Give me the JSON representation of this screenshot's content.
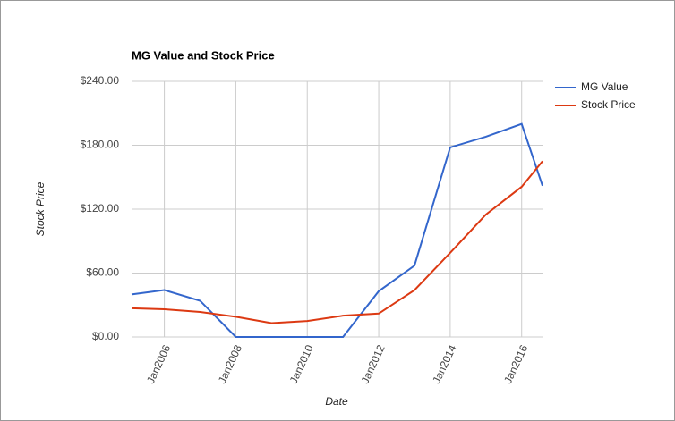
{
  "chart_data": {
    "type": "line",
    "title": "MG Value and Stock Price",
    "x_label": "Date",
    "y_label": "Stock Price",
    "x": [
      "2005-02",
      "2006-01",
      "2007-01",
      "2008-01",
      "2009-01",
      "2010-01",
      "2011-01",
      "2012-01",
      "2013-01",
      "2014-01",
      "2015-01",
      "2016-01",
      "2016-08"
    ],
    "series": [
      {
        "name": "MG Value",
        "color": "#3366cc",
        "values": [
          40,
          44,
          34,
          0,
          0,
          0,
          0,
          43,
          67,
          178,
          188,
          200,
          142
        ]
      },
      {
        "name": "Stock Price",
        "color": "#dc3912",
        "values": [
          27,
          26,
          23.5,
          19,
          13,
          15,
          20,
          22,
          44,
          79,
          115,
          141,
          165
        ]
      }
    ],
    "xlim": [
      "2005-02",
      "2016-08"
    ],
    "xticks": [
      {
        "value": "2006-01",
        "label": "Jan2006"
      },
      {
        "value": "2008-01",
        "label": "Jan2008"
      },
      {
        "value": "2010-01",
        "label": "Jan2010"
      },
      {
        "value": "2012-01",
        "label": "Jan2012"
      },
      {
        "value": "2014-01",
        "label": "Jan2014"
      },
      {
        "value": "2016-01",
        "label": "Jan2016"
      }
    ],
    "ylim": [
      0,
      240
    ],
    "yticks": [
      {
        "value": 0,
        "label": "$0.00"
      },
      {
        "value": 60,
        "label": "$60.00"
      },
      {
        "value": 120,
        "label": "$120.00"
      },
      {
        "value": 180,
        "label": "$180.00"
      },
      {
        "value": 240,
        "label": "$240.00"
      }
    ],
    "grid": true,
    "legend": "right"
  }
}
